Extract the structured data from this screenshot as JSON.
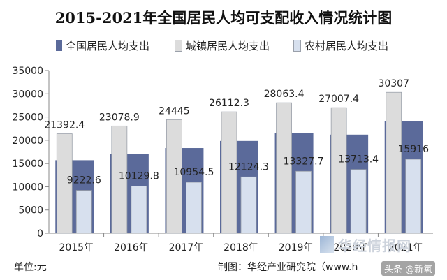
{
  "chart_data": {
    "type": "bar",
    "title": "2015-2021年全国居民人均可支配收入情况统计图",
    "categories": [
      "2015年",
      "2016年",
      "2017年",
      "2018年",
      "2019年",
      "2020年",
      "2021年"
    ],
    "series": [
      {
        "name": "全国居民人均支出",
        "values": [
          15712,
          17111,
          18322,
          19853,
          21559,
          21210,
          24100
        ],
        "color": "#5b6a9a"
      },
      {
        "name": "城镇居民人均支出",
        "values": [
          21392.4,
          23078.9,
          24445,
          26112.3,
          28063.4,
          27007.4,
          30307
        ],
        "color": "#dcdcdc"
      },
      {
        "name": "农村居民人均支出",
        "values": [
          9222.6,
          10129.8,
          10954.5,
          12124.3,
          13327.7,
          13713.4,
          15916
        ],
        "color": "#d7e0ee"
      }
    ],
    "data_labels": {
      "城镇居民人均支出": [
        "21392.4",
        "23078.9",
        "24445",
        "26112.3",
        "28063.4",
        "27007.4",
        "30307"
      ],
      "农村居民人均支出": [
        "9222.6",
        "10129.8",
        "10954.5",
        "12124.3",
        "13327.7",
        "13713.4",
        "15916"
      ]
    },
    "ylim": [
      0,
      35000
    ],
    "yticks": [
      0,
      5000,
      10000,
      15000,
      20000,
      25000,
      30000,
      35000
    ],
    "ytick_labels": [
      "0",
      "5000",
      "10000",
      "15000",
      "20000",
      "25000",
      "30000",
      "35000"
    ],
    "legend_position": "top"
  },
  "footer": {
    "unit": "单位:元",
    "source": "制图：华经产业研究院（www.h"
  },
  "watermark": {
    "text": "华经情报网"
  },
  "overlay": {
    "text": "头条 @新氧"
  }
}
